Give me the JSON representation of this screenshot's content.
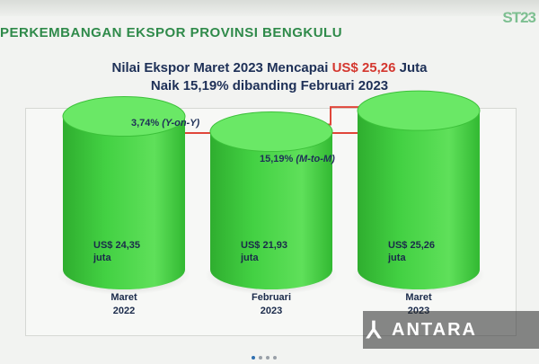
{
  "header": {
    "title": "PERKEMBANGAN EKSPOR PROVINSI BENGKULU",
    "logo_text": "ST23"
  },
  "headline": {
    "line1_prefix": "Nilai Ekspor Maret 2023 Mencapai ",
    "line1_value": "US$ 25,26",
    "line1_suffix": " Juta",
    "line2": "Naik 15,19% dibanding Februari 2023"
  },
  "annotations": {
    "yoy_value": "3,74%",
    "yoy_label": "(Y-on-Y)",
    "mtm_value": "15,19%",
    "mtm_label": "(M-to-M)"
  },
  "watermark": {
    "text": "ANTARA"
  },
  "colors": {
    "cylinder": "#43d143",
    "arrow": "#e0463a",
    "title": "#2f8a4a",
    "highlight": "#d4372f"
  },
  "chart_data": {
    "type": "bar",
    "style": "3d-cylinder",
    "categories": [
      "Maret 2022",
      "Februari 2023",
      "Maret 2023"
    ],
    "category_lines": [
      [
        "Maret",
        "2022"
      ],
      [
        "Februari",
        "2023"
      ],
      [
        "Maret",
        "2023"
      ]
    ],
    "values": [
      24.35,
      21.93,
      25.26
    ],
    "value_labels": [
      [
        "US$ 24,35",
        "juta"
      ],
      [
        "US$ 21,93",
        "juta"
      ],
      [
        "US$ 25,26",
        "juta"
      ]
    ],
    "title": "",
    "xlabel": "",
    "ylabel": "",
    "ylim": [
      0,
      30
    ],
    "grid": false
  }
}
